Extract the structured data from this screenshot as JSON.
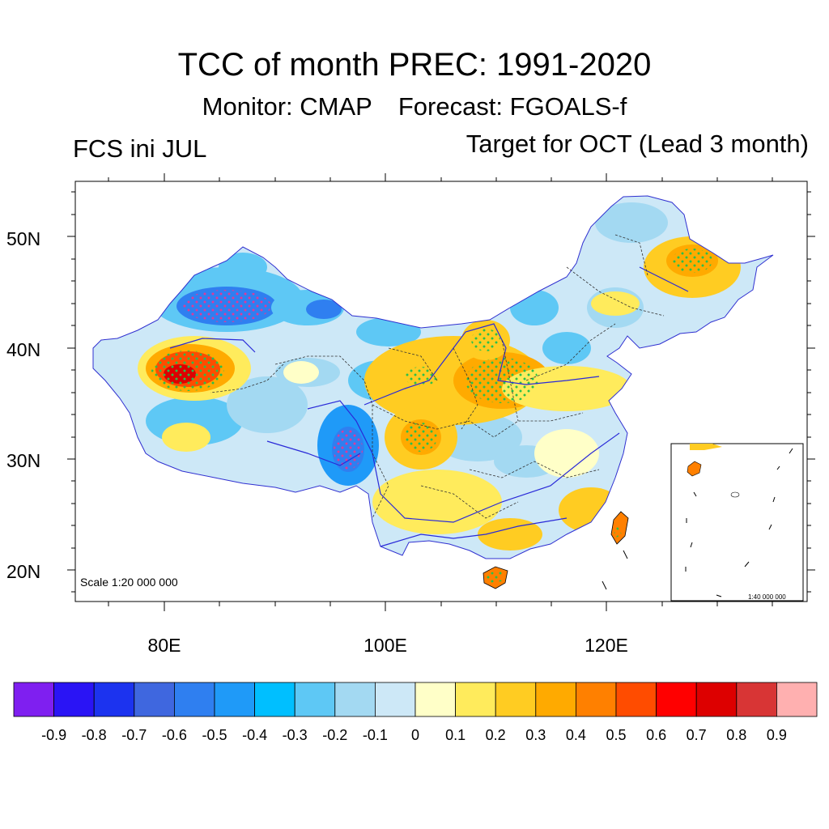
{
  "header": {
    "title": "TCC of month PREC: 1991-2020",
    "monitor": "Monitor: CMAP",
    "forecast": "Forecast: FGOALS-f",
    "left_label": "FCS ini JUL",
    "right_label": "Target for OCT (Lead 3 month)"
  },
  "map": {
    "lat_labels": [
      "50N",
      "40N",
      "30N",
      "20N"
    ],
    "lon_labels": [
      "80E",
      "100E",
      "120E"
    ],
    "scale": "Scale 1:20 000 000",
    "inset_scale": "1:40 000 000",
    "colors": {
      "land_default": "#cde8f7",
      "stipple": "#2bbf4a",
      "stipple_negative": "#e0389a",
      "rivers": "#2a2ad8",
      "borders": "#333333"
    }
  },
  "colorbar": {
    "labels": [
      "-0.9",
      "-0.8",
      "-0.7",
      "-0.6",
      "-0.5",
      "-0.4",
      "-0.3",
      "-0.2",
      "-0.1",
      "0",
      "0.1",
      "0.2",
      "0.3",
      "0.4",
      "0.5",
      "0.6",
      "0.7",
      "0.8",
      "0.9"
    ],
    "colors": [
      "#7f1ff0",
      "#2a14f5",
      "#1c33ef",
      "#3f67df",
      "#2f7ff0",
      "#1f9af8",
      "#00bfff",
      "#5ec8f5",
      "#a3d9f2",
      "#cde8f7",
      "#ffffc8",
      "#ffeb5c",
      "#ffcc22",
      "#ffaa00",
      "#ff8000",
      "#ff4c00",
      "#ff0000",
      "#dd0000",
      "#d83535",
      "#ffb0b0"
    ]
  }
}
